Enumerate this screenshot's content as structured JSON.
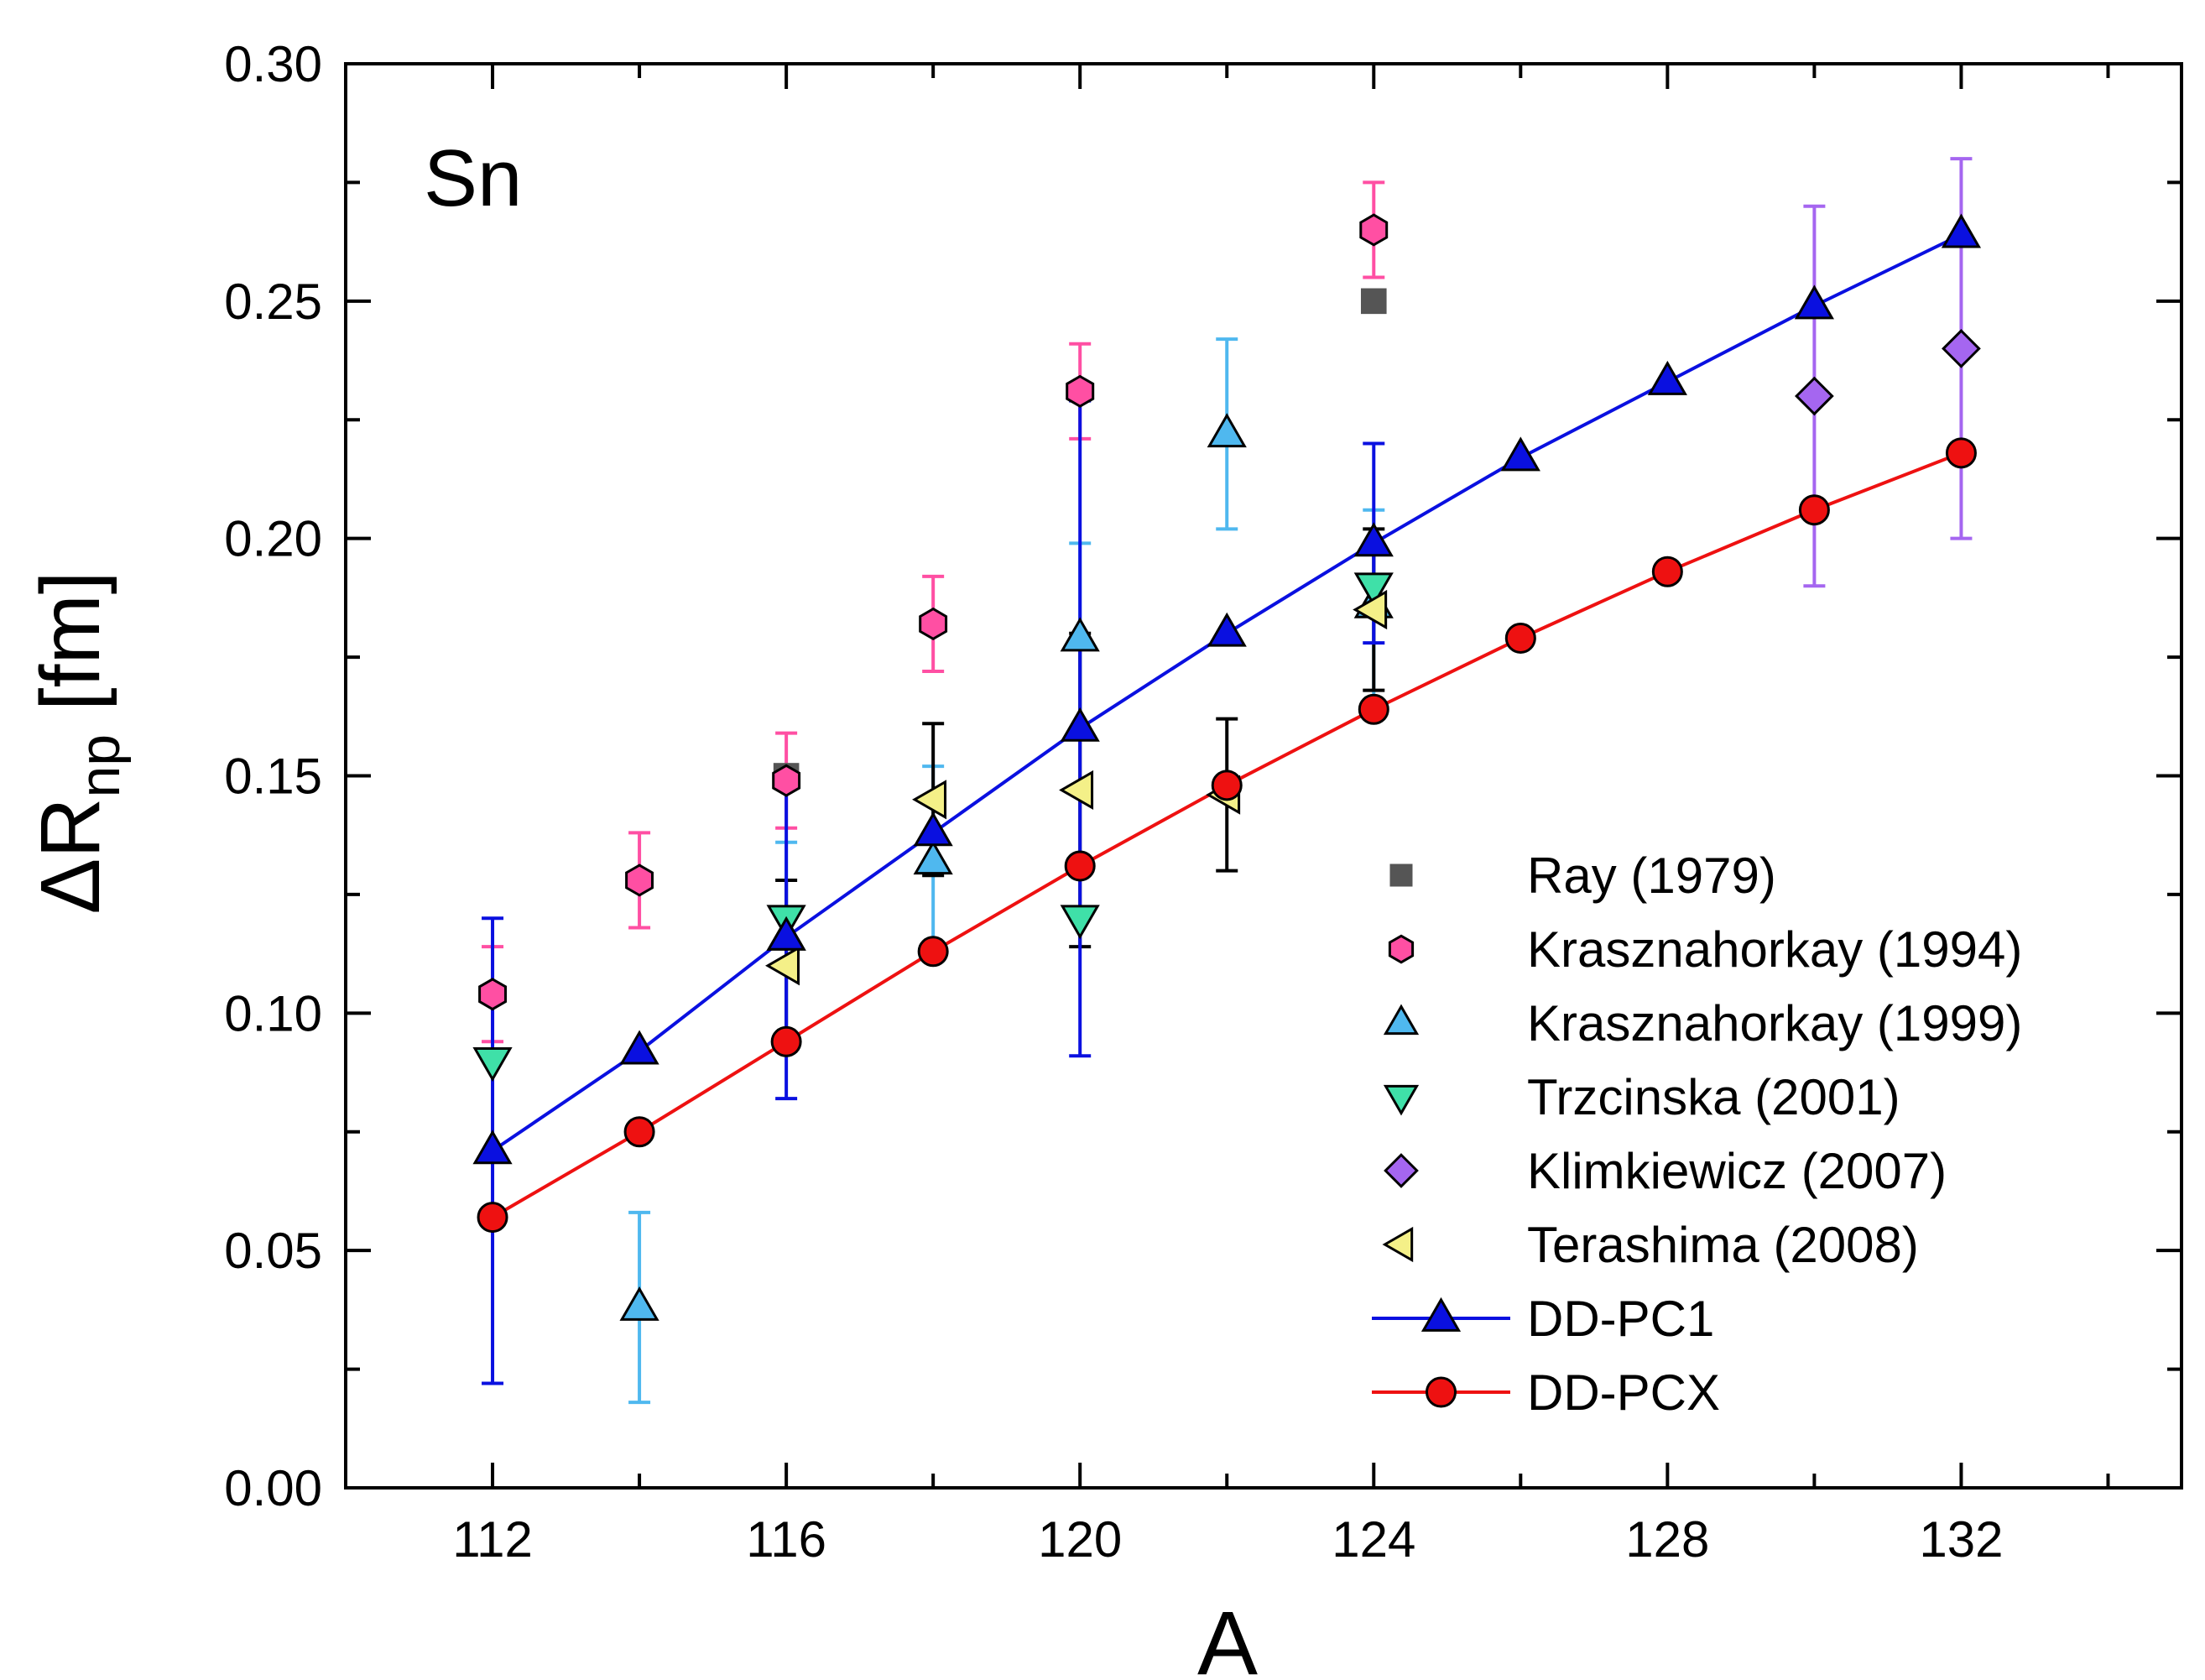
{
  "chart_data": {
    "type": "scatter",
    "panel_label": "Sn",
    "xlabel": "A",
    "ylabel": {
      "main": "ΔR",
      "sub": "np",
      "unit": " [fm]"
    },
    "xlim": [
      110,
      135
    ],
    "ylim": [
      0.0,
      0.3
    ],
    "xticks": [
      112,
      116,
      120,
      124,
      128,
      132
    ],
    "yticks": [
      "0.00",
      "0.05",
      "0.10",
      "0.15",
      "0.20",
      "0.25",
      "0.30"
    ],
    "x_minor_step": 2,
    "y_minor_step": 0.025,
    "legend_position": "bottom-right",
    "series": [
      {
        "name": "Ray (1979)",
        "marker": "square",
        "color": "#555555",
        "line": false,
        "points": [
          {
            "x": 116,
            "y": 0.15,
            "err": 0
          },
          {
            "x": 124,
            "y": 0.25,
            "err": 0
          }
        ]
      },
      {
        "name": "Krasznahorkay (1994)",
        "marker": "hexagon",
        "color": "#ff4fa3",
        "line": false,
        "points": [
          {
            "x": 112,
            "y": 0.104,
            "err": 0.01
          },
          {
            "x": 114,
            "y": 0.128,
            "err": 0.01
          },
          {
            "x": 116,
            "y": 0.149,
            "err": 0.01
          },
          {
            "x": 118,
            "y": 0.182,
            "err": 0.01
          },
          {
            "x": 120,
            "y": 0.231,
            "err": 0.01
          },
          {
            "x": 124,
            "y": 0.265,
            "err": 0.01
          }
        ]
      },
      {
        "name": "Krasznahorkay (1999)",
        "marker": "triangle-up",
        "color": "#4fb8ef",
        "line": false,
        "points": [
          {
            "x": 114,
            "y": 0.038,
            "err": 0.02
          },
          {
            "x": 116,
            "y": 0.116,
            "err": 0.02
          },
          {
            "x": 118,
            "y": 0.132,
            "err": 0.02
          },
          {
            "x": 120,
            "y": 0.179,
            "err": 0.02
          },
          {
            "x": 122,
            "y": 0.222,
            "err": 0.02
          },
          {
            "x": 124,
            "y": 0.186,
            "err": 0.02
          }
        ]
      },
      {
        "name": "Trzcinska (2001)",
        "marker": "triangle-down",
        "color": "#3fe0a8",
        "line": false,
        "points": [
          {
            "x": 112,
            "y": 0.09,
            "err": 0
          },
          {
            "x": 116,
            "y": 0.12,
            "err": 0
          },
          {
            "x": 120,
            "y": 0.12,
            "err": 0
          },
          {
            "x": 124,
            "y": 0.19,
            "err": 0
          }
        ]
      },
      {
        "name": "Klimkiewicz (2007)",
        "marker": "diamond",
        "color": "#a566f0",
        "line": false,
        "points": [
          {
            "x": 130,
            "y": 0.23,
            "err": 0.04
          },
          {
            "x": 132,
            "y": 0.24,
            "err": 0.04
          }
        ]
      },
      {
        "name": "Terashima (2008)",
        "marker": "triangle-left",
        "color": "#f4f088",
        "line": false,
        "points": [
          {
            "x": 116,
            "y": 0.11,
            "err": 0.018
          },
          {
            "x": 118,
            "y": 0.145,
            "err": 0.016
          },
          {
            "x": 120,
            "y": 0.147,
            "err": 0.033
          },
          {
            "x": 122,
            "y": 0.146,
            "err": 0.016
          },
          {
            "x": 124,
            "y": 0.185,
            "err": 0.017
          }
        ]
      },
      {
        "name": "DD-PC1",
        "marker": "triangle-up",
        "color": "#0a10e0",
        "line": true,
        "points": [
          {
            "x": 112,
            "y": 0.071,
            "err": 0.049
          },
          {
            "x": 114,
            "y": 0.092,
            "err": 0
          },
          {
            "x": 116,
            "y": 0.116,
            "err": 0.034
          },
          {
            "x": 118,
            "y": 0.138,
            "err": 0
          },
          {
            "x": 120,
            "y": 0.16,
            "err": 0.069
          },
          {
            "x": 122,
            "y": 0.18,
            "err": 0
          },
          {
            "x": 124,
            "y": 0.199,
            "err": 0.021
          },
          {
            "x": 126,
            "y": 0.217,
            "err": 0
          },
          {
            "x": 128,
            "y": 0.233,
            "err": 0
          },
          {
            "x": 130,
            "y": 0.249,
            "err": 0
          },
          {
            "x": 132,
            "y": 0.264,
            "err": 0
          }
        ]
      },
      {
        "name": "DD-PCX",
        "marker": "circle",
        "color": "#ee1111",
        "line": true,
        "points": [
          {
            "x": 112,
            "y": 0.057,
            "err": 0
          },
          {
            "x": 114,
            "y": 0.075,
            "err": 0
          },
          {
            "x": 116,
            "y": 0.094,
            "err": 0
          },
          {
            "x": 118,
            "y": 0.113,
            "err": 0
          },
          {
            "x": 120,
            "y": 0.131,
            "err": 0
          },
          {
            "x": 122,
            "y": 0.148,
            "err": 0
          },
          {
            "x": 124,
            "y": 0.164,
            "err": 0
          },
          {
            "x": 126,
            "y": 0.179,
            "err": 0
          },
          {
            "x": 128,
            "y": 0.193,
            "err": 0
          },
          {
            "x": 130,
            "y": 0.206,
            "err": 0
          },
          {
            "x": 132,
            "y": 0.218,
            "err": 0
          }
        ]
      }
    ]
  }
}
